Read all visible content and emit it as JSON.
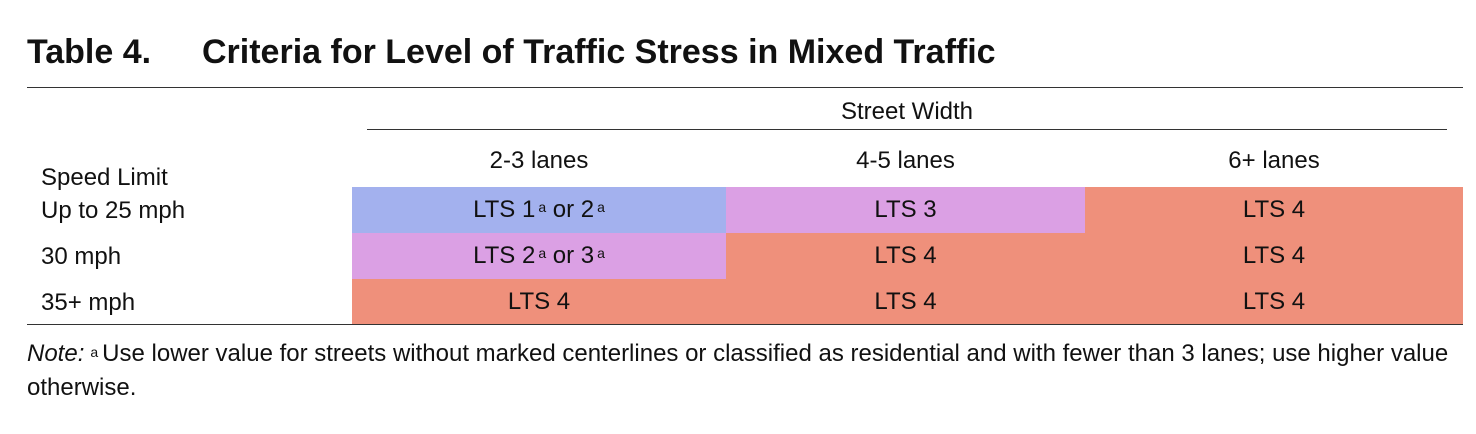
{
  "title": {
    "label": "Table 4.",
    "text": "Criteria for Level of Traffic Stress in Mixed Traffic"
  },
  "header": {
    "group_label": "Street Width",
    "row_header": "Speed Limit",
    "columns": [
      "2-3 lanes",
      "4-5 lanes",
      "6+ lanes"
    ]
  },
  "colors": {
    "lts1_2": "#a3b1ee",
    "lts2_3": "#dba0e4",
    "lts3": "#dba0e4",
    "lts4": "#ef907b"
  },
  "rows": [
    {
      "label": "Up to 25 mph",
      "cells": [
        {
          "parts": [
            "LTS 1",
            "a",
            " or 2",
            "a"
          ],
          "color": "#a3b1ee"
        },
        {
          "parts": [
            "LTS 3"
          ],
          "color": "#dba0e4"
        },
        {
          "parts": [
            "LTS 4"
          ],
          "color": "#ef907b"
        }
      ]
    },
    {
      "label": "30 mph",
      "cells": [
        {
          "parts": [
            "LTS 2",
            "a",
            " or 3",
            "a"
          ],
          "color": "#dba0e4"
        },
        {
          "parts": [
            "LTS 4"
          ],
          "color": "#ef907b"
        },
        {
          "parts": [
            "LTS 4"
          ],
          "color": "#ef907b"
        }
      ]
    },
    {
      "label": "35+ mph",
      "cells": [
        {
          "parts": [
            "LTS 4"
          ],
          "color": "#ef907b"
        },
        {
          "parts": [
            "LTS 4"
          ],
          "color": "#ef907b"
        },
        {
          "parts": [
            "LTS 4"
          ],
          "color": "#ef907b"
        }
      ]
    }
  ],
  "note": {
    "label": "Note:",
    "marker": "a",
    "text": "Use lower value for streets without marked centerlines or classified as residential and with fewer than 3 lanes; use higher value otherwise."
  }
}
